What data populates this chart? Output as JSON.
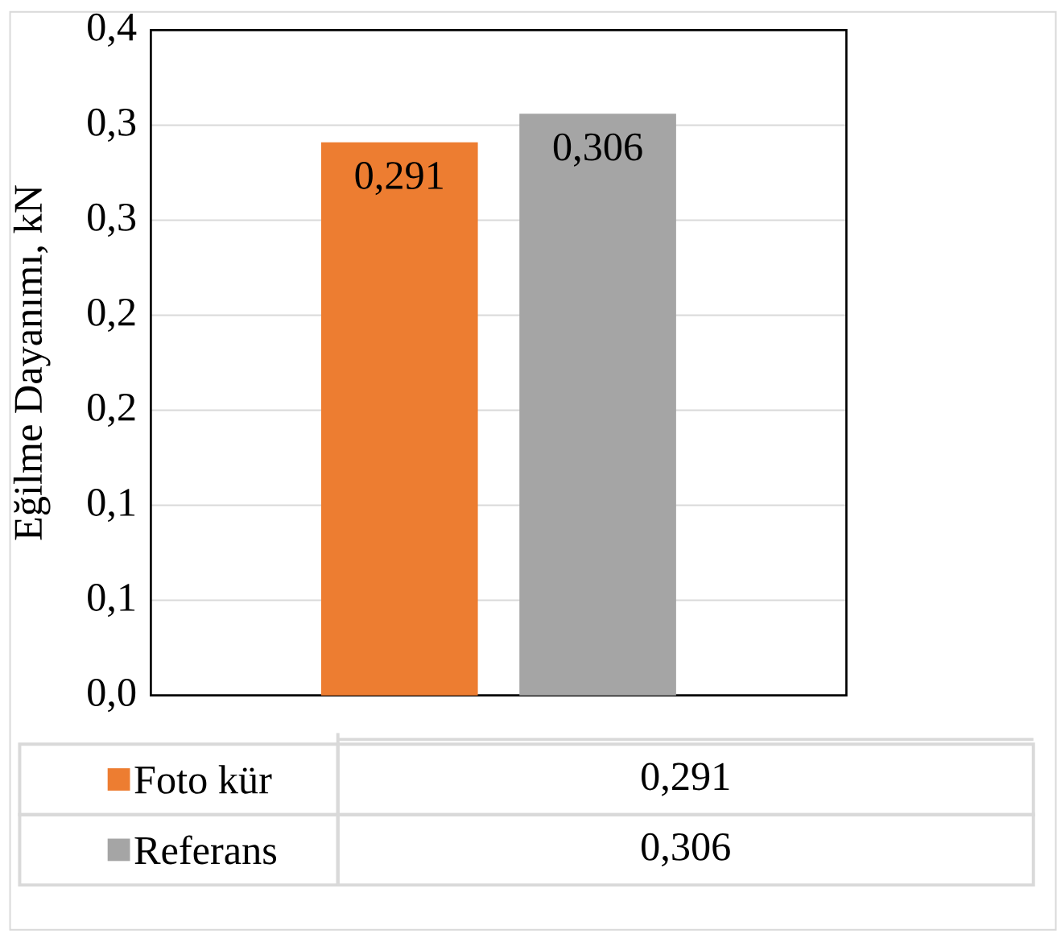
{
  "chart_data": {
    "type": "bar",
    "ylabel": "Eğilme Dayanımı, kN",
    "categories": [
      null
    ],
    "series": [
      {
        "name": "Foto kür",
        "color": "#ed7d31",
        "values": [
          0.291
        ],
        "value_labels": [
          "0,291"
        ]
      },
      {
        "name": "Referans",
        "color": "#a5a5a5",
        "values": [
          0.306
        ],
        "value_labels": [
          "0,306"
        ]
      }
    ],
    "ylim": [
      0,
      0.35
    ],
    "yticks": [
      {
        "value": 0,
        "label": "0,0"
      },
      {
        "value": 0.05,
        "label": "0,1"
      },
      {
        "value": 0.1,
        "label": "0,1"
      },
      {
        "value": 0.15,
        "label": "0,2"
      },
      {
        "value": 0.2,
        "label": "0,2"
      },
      {
        "value": 0.25,
        "label": "0,3"
      },
      {
        "value": 0.3,
        "label": "0,3"
      },
      {
        "value": 0.35,
        "label": "0,4"
      }
    ],
    "grid": "y",
    "legend": "bottom"
  }
}
